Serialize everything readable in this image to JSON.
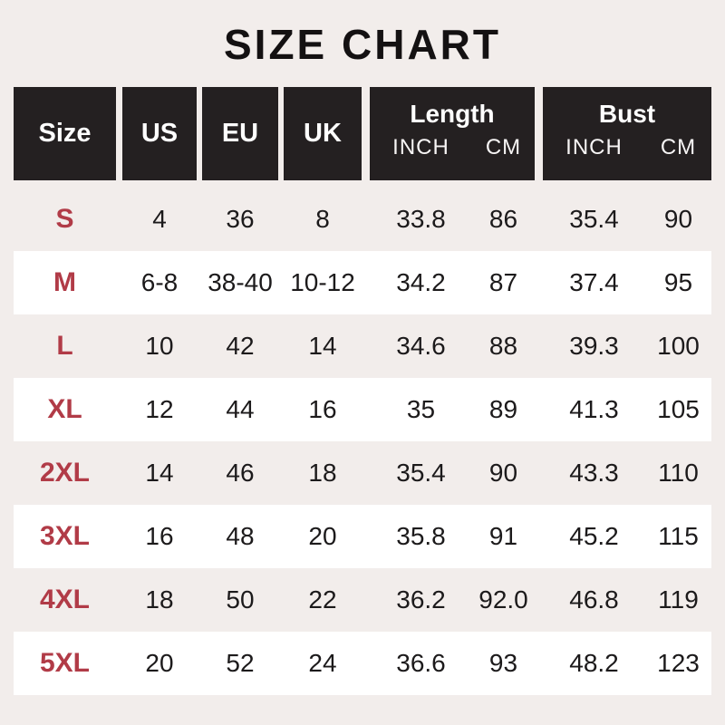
{
  "title": "SIZE CHART",
  "colors": {
    "background": "#f2edeb",
    "header_bg": "#242021",
    "header_text": "#ffffff",
    "size_label_text": "#b13b47",
    "value_text": "#1c1a1b",
    "alt_row_bg": "#ffffff"
  },
  "chart_data": {
    "type": "table",
    "title": "SIZE CHART",
    "column_groups": [
      {
        "label": "Size",
        "span": 1
      },
      {
        "label": "US",
        "span": 1
      },
      {
        "label": "EU",
        "span": 1
      },
      {
        "label": "UK",
        "span": 1
      },
      {
        "label": "Length",
        "span": 2,
        "sub": [
          "INCH",
          "CM"
        ]
      },
      {
        "label": "Bust",
        "span": 2,
        "sub": [
          "INCH",
          "CM"
        ]
      }
    ],
    "columns_flat": [
      "Size",
      "US",
      "EU",
      "UK",
      "Length INCH",
      "Length CM",
      "Bust INCH",
      "Bust CM"
    ],
    "rows": [
      [
        "S",
        "4",
        "36",
        "8",
        "33.8",
        "86",
        "35.4",
        "90"
      ],
      [
        "M",
        "6-8",
        "38-40",
        "10-12",
        "34.2",
        "87",
        "37.4",
        "95"
      ],
      [
        "L",
        "10",
        "42",
        "14",
        "34.6",
        "88",
        "39.3",
        "100"
      ],
      [
        "XL",
        "12",
        "44",
        "16",
        "35",
        "89",
        "41.3",
        "105"
      ],
      [
        "2XL",
        "14",
        "46",
        "18",
        "35.4",
        "90",
        "43.3",
        "110"
      ],
      [
        "3XL",
        "16",
        "48",
        "20",
        "35.8",
        "91",
        "45.2",
        "115"
      ],
      [
        "4XL",
        "18",
        "50",
        "22",
        "36.2",
        "92.0",
        "46.8",
        "119"
      ],
      [
        "5XL",
        "20",
        "52",
        "24",
        "36.6",
        "93",
        "48.2",
        "123"
      ]
    ]
  }
}
